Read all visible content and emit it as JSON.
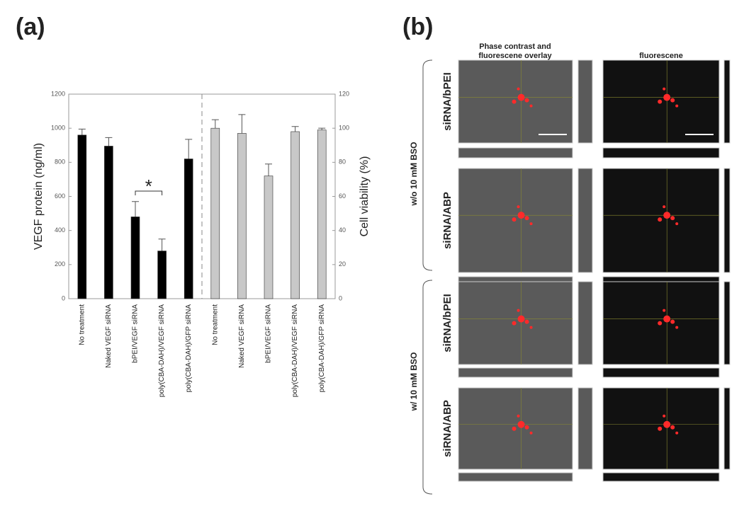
{
  "chart_data": {
    "type": "bar",
    "panel_label": "(a)",
    "categories": [
      "No treatment",
      "Naked VEGF siRNA",
      "bPEI/VEGF siRNA",
      "poly(CBA-DAH)/VEGF siRNA",
      "poly(CBA-DAH)/GFP siRNA",
      "No treatment",
      "Naked VEGF siRNA",
      "bPEI/VEGF siRNA",
      "poly(CBA-DAH)/VEGF siRNA",
      "poly(CBA-DAH)/GFP siRNA"
    ],
    "series": [
      {
        "color": "#000000",
        "values": [
          960,
          895,
          480,
          280,
          820,
          null,
          null,
          null,
          null,
          null
        ],
        "errors": [
          35,
          50,
          90,
          70,
          115,
          null,
          null,
          null,
          null,
          null
        ]
      },
      {
        "color": "#c8c8c8",
        "axis": "y2",
        "values": [
          null,
          null,
          null,
          null,
          null,
          100,
          97,
          72,
          98,
          99
        ],
        "errors": [
          null,
          null,
          null,
          null,
          null,
          5,
          11,
          7,
          3,
          1
        ]
      }
    ],
    "ylabel": "VEGF protein (ng/ml)",
    "ylim": [
      0,
      1200
    ],
    "yticks": [
      0,
      200,
      400,
      600,
      800,
      1000,
      1200
    ],
    "y2label": "Cell viability (%)",
    "y2lim": [
      0,
      120
    ],
    "y2ticks": [
      0,
      20,
      40,
      60,
      80,
      100,
      120
    ],
    "annotation": "*"
  },
  "panel_b": {
    "label": "(b)",
    "column_headers": [
      [
        "Phase contrast and",
        "fluorescene overlay"
      ],
      [
        "fluorescene"
      ]
    ],
    "groups": [
      {
        "label": "w/o 10 mM BSO",
        "rows": [
          "siRNA/bPEI",
          "siRNA/ABP"
        ]
      },
      {
        "label": "w/ 10 mM BSO",
        "rows": [
          "siRNA/bPEI",
          "siRNA/ABP"
        ]
      }
    ]
  }
}
